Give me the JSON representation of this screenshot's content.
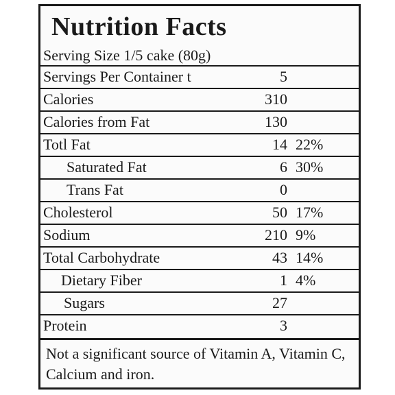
{
  "title": "Nutrition Facts",
  "serving_size": "Serving Size  1/5 cake (80g)",
  "rows": [
    {
      "name": "Servings Per Container t",
      "amount": "5",
      "dv": ""
    },
    {
      "name": "Calories",
      "amount": "310",
      "dv": ""
    },
    {
      "name": "Calories from Fat",
      "amount": "130",
      "dv": ""
    },
    {
      "name": "Totl Fat",
      "amount": "14",
      "dv": "22%"
    },
    {
      "name": "Saturated Fat",
      "amount": "6",
      "dv": "30%"
    },
    {
      "name": "Trans Fat",
      "amount": "0",
      "dv": ""
    },
    {
      "name": "Cholesterol",
      "amount": "50",
      "dv": "17%"
    },
    {
      "name": "Sodium",
      "amount": "210",
      "dv": "9%"
    },
    {
      "name": "Total Carbohydrate",
      "amount": "43",
      "dv": "14%"
    },
    {
      "name": "Dietary Fiber",
      "amount": "1",
      "dv": "4%"
    },
    {
      "name": "Sugars",
      "amount": "27",
      "dv": ""
    },
    {
      "name": "Protein",
      "amount": "3",
      "dv": ""
    }
  ],
  "footnote": "Not a significant source of Vitamin A, Vitamin C, Calcium and iron."
}
